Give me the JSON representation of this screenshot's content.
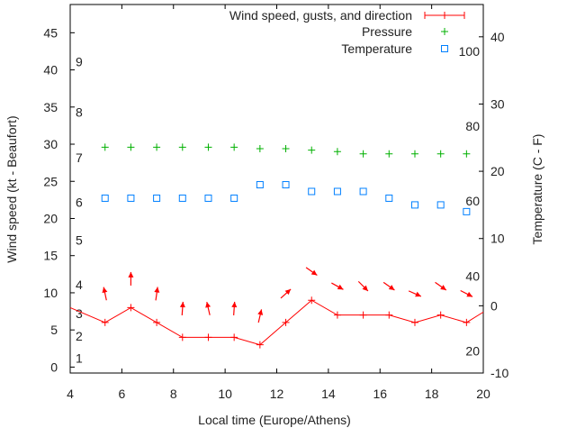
{
  "chart_data": {
    "type": "line",
    "xlabel": "Local time (Europe/Athens)",
    "ylabel": "Wind speed (kt - Beaufort)",
    "y2label": "Temperature (C - F)",
    "xlim": [
      4,
      20
    ],
    "ylim": [
      -0.8,
      48.8
    ],
    "y2lim": [
      -10,
      44.8
    ],
    "x_ticks": [
      4,
      6,
      8,
      10,
      12,
      14,
      16,
      18,
      20
    ],
    "y_ticks": [
      0,
      5,
      10,
      15,
      20,
      25,
      30,
      35,
      40,
      45
    ],
    "y2_ticks": [
      -10,
      0,
      10,
      20,
      30,
      40
    ],
    "beaufort_labels": [
      {
        "label": "1",
        "kt": 1.2
      },
      {
        "label": "2",
        "kt": 4.2
      },
      {
        "label": "3",
        "kt": 7.2
      },
      {
        "label": "4",
        "kt": 11.1
      },
      {
        "label": "5",
        "kt": 17.1
      },
      {
        "label": "6",
        "kt": 22.2
      },
      {
        "label": "7",
        "kt": 28.2
      },
      {
        "label": "8",
        "kt": 34.3
      },
      {
        "label": "9",
        "kt": 41.1
      }
    ],
    "fahrenheit_labels": [
      {
        "label": "20",
        "c": -6.7
      },
      {
        "label": "40",
        "c": 4.4
      },
      {
        "label": "60",
        "c": 15.6
      },
      {
        "label": "80",
        "c": 26.7
      },
      {
        "label": "100",
        "c": 37.8
      }
    ],
    "legend_position": "top-right",
    "x": [
      5.35,
      6.35,
      7.35,
      8.35,
      9.35,
      10.35,
      11.35,
      12.35,
      13.35,
      14.35,
      15.35,
      16.35,
      17.35,
      18.35,
      19.35
    ],
    "series": [
      {
        "name": "Wind speed, gusts, and direction",
        "color": "#ff0000",
        "axis": "left",
        "line_extends": {
          "x4": 8,
          "x20": 7.4
        },
        "values": [
          6,
          8,
          6,
          4,
          4,
          4,
          3,
          6,
          9,
          7,
          7,
          7,
          6,
          7,
          6
        ],
        "direction_arrow_bearing_deg": [
          348,
          0,
          8,
          4,
          347,
          4,
          13,
          48,
          125,
          119,
          135,
          125,
          114,
          125,
          117
        ]
      },
      {
        "name": "Pressure",
        "color": "#00b000",
        "axis": "left",
        "values": [
          29.6,
          29.6,
          29.6,
          29.6,
          29.6,
          29.6,
          29.4,
          29.4,
          29.2,
          29.0,
          28.7,
          28.7,
          28.7,
          28.7,
          28.7
        ]
      },
      {
        "name": "Temperature",
        "color": "#0080ff",
        "axis": "right",
        "values": [
          16,
          16,
          16,
          16,
          16,
          16,
          18,
          18,
          17,
          17,
          17,
          16,
          15,
          15,
          14
        ]
      }
    ]
  }
}
